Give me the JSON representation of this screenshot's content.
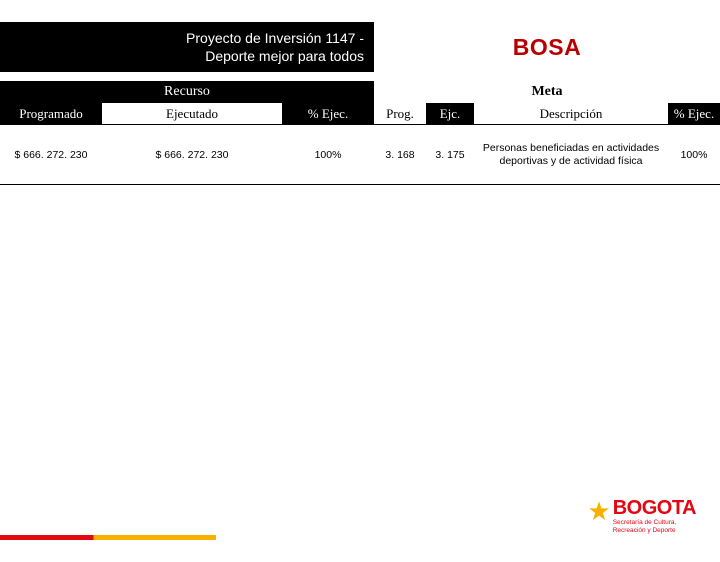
{
  "header": {
    "project_line1": "Proyecto de Inversión 1147 -",
    "project_line2": "Deporte mejor para todos",
    "district": "BOSA"
  },
  "groups": {
    "recurso": "Recurso",
    "meta": "Meta"
  },
  "cols": {
    "programado": "Programado",
    "ejecutado": "Ejecutado",
    "p_ejec": "% Ejec.",
    "prog": "Prog.",
    "ejc": "Ejc.",
    "descripcion": "Descripción",
    "m_p_ejec": "% Ejec."
  },
  "row": {
    "programado": "$ 666. 272. 230",
    "ejecutado": "$ 666. 272. 230",
    "p_ejec": "100%",
    "prog": "3. 168",
    "ejc": "3. 175",
    "descripcion": "Personas beneficiadas en actividades deportivas y de actividad física",
    "m_p_ejec": "100%"
  },
  "logo": {
    "brand": "BOGOTA",
    "sub1": "Secretaría de Cultura,",
    "sub2": "Recreación y Deporte"
  },
  "colors": {
    "accent_red": "#e30613",
    "accent_yellow": "#f9b000",
    "headline_red": "#b80000"
  }
}
